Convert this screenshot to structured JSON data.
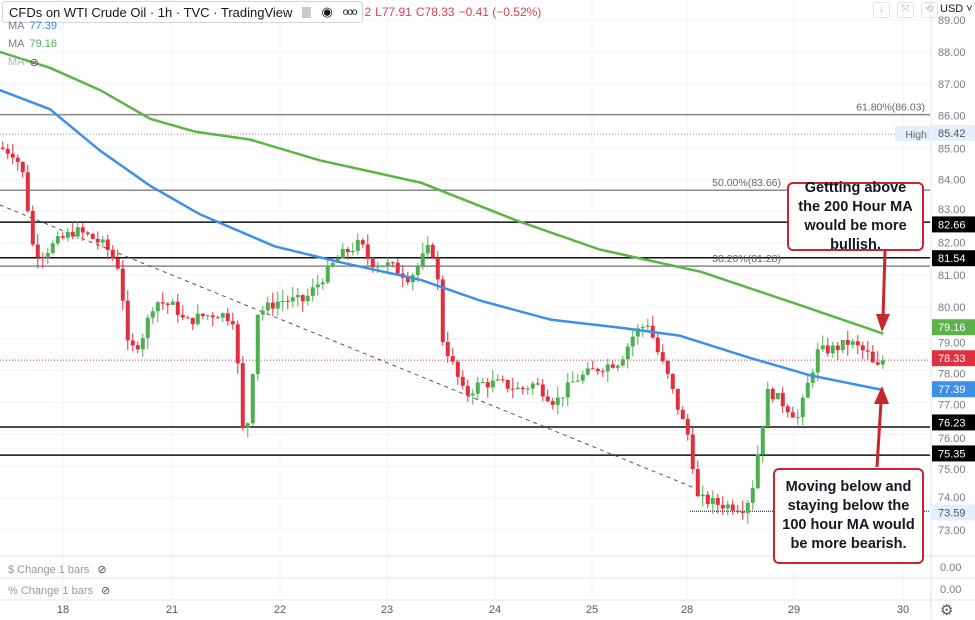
{
  "header": {
    "title": "CFDs on WTI Crude Oil · 1h · TVC · TradingView",
    "ohlc": [
      "2",
      "L77.91",
      "C78.33",
      "−0.41 (−0.52%)"
    ],
    "indicators": [
      {
        "label": "MA",
        "value": "77.39",
        "color": "#2f8cf0"
      },
      {
        "label": "MA",
        "value": "79.16",
        "color": "#4caf50"
      },
      {
        "label": "MA",
        "value": ""
      }
    ]
  },
  "toolbar": {
    "currency": "USD"
  },
  "panes": [
    {
      "label": "$ Change 1 bars",
      "value": "0.00"
    },
    {
      "label": "% Change 1 bars",
      "value": "0.00"
    }
  ],
  "callouts": {
    "top": "Gettting above the 200 Hour MA would be more bullish.",
    "bottom": "Moving below and staying below the 100 hour MA would be more bearish."
  },
  "colors": {
    "up": "#4caf50",
    "down": "#e0303f",
    "ma100": "#3d8fe8",
    "ma200": "#5cb347",
    "callout": "#c9252c"
  },
  "chart_data": {
    "type": "candlestick",
    "title": "CFDs on WTI Crude Oil · 1h · TVC",
    "x_ticks": [
      "18",
      "21",
      "22",
      "23",
      "24",
      "25",
      "28",
      "29",
      "30"
    ],
    "y_ticks": [
      "89.00",
      "88.00",
      "87.00",
      "86.00",
      "85.00",
      "84.00",
      "83.00",
      "82.00",
      "81.00",
      "80.00",
      "79.00",
      "78.00",
      "77.00",
      "76.00",
      "75.00",
      "74.00",
      "73.00"
    ],
    "ylim": [
      72.4,
      89.1
    ],
    "grid": true,
    "close_path": [
      [
        "18",
        -0.58,
        85.0
      ],
      [
        "18",
        -0.44,
        84.8
      ],
      [
        "18",
        -0.35,
        84.0
      ],
      [
        "18",
        -0.29,
        82.0
      ],
      [
        "18",
        -0.21,
        81.6
      ],
      [
        "18",
        -0.07,
        82.0
      ],
      [
        "18",
        0.11,
        82.4
      ],
      [
        "18",
        0.25,
        82.2
      ],
      [
        "18",
        0.39,
        81.9
      ],
      [
        "18",
        0.52,
        81.2
      ],
      [
        "18",
        0.6,
        78.6
      ],
      [
        "18",
        0.71,
        78.9
      ],
      [
        "18",
        0.84,
        80.2
      ],
      [
        "21",
        0.03,
        80.0
      ],
      [
        "21",
        0.12,
        79.5
      ],
      [
        "21",
        0.26,
        79.7
      ],
      [
        "21",
        0.44,
        79.8
      ],
      [
        "21",
        0.58,
        79.6
      ],
      [
        "21",
        0.65,
        76.1
      ],
      [
        "21",
        0.72,
        76.5
      ],
      [
        "21",
        0.78,
        79.8
      ],
      [
        "22",
        0.0,
        80.2
      ],
      [
        "22",
        0.23,
        80.2
      ],
      [
        "22",
        0.37,
        80.8
      ],
      [
        "22",
        0.56,
        81.6
      ],
      [
        "22",
        0.75,
        82.0
      ],
      [
        "22",
        0.84,
        81.4
      ],
      [
        "23",
        0.03,
        81.3
      ],
      [
        "23",
        0.21,
        80.9
      ],
      [
        "23",
        0.38,
        81.8
      ],
      [
        "23",
        0.46,
        81.6
      ],
      [
        "23",
        0.49,
        79.2
      ],
      [
        "23",
        0.63,
        78.0
      ],
      [
        "23",
        0.72,
        77.2
      ],
      [
        "23",
        0.86,
        77.6
      ],
      [
        "24",
        0.05,
        77.6
      ],
      [
        "24",
        0.26,
        77.4
      ],
      [
        "24",
        0.41,
        77.6
      ],
      [
        "24",
        0.62,
        77.0
      ],
      [
        "24",
        0.82,
        77.7
      ],
      [
        "25",
        0.08,
        78.1
      ],
      [
        "25",
        0.29,
        78.3
      ],
      [
        "25",
        0.45,
        79.2
      ],
      [
        "25",
        0.59,
        79.5
      ],
      [
        "25",
        0.69,
        78.6
      ],
      [
        "25",
        0.8,
        77.8
      ],
      [
        "25",
        0.93,
        76.6
      ],
      [
        "28",
        0.03,
        75.8
      ],
      [
        "28",
        0.09,
        74.0
      ],
      [
        "28",
        0.31,
        73.8
      ],
      [
        "28",
        0.54,
        73.7
      ],
      [
        "28",
        0.61,
        74.3
      ],
      [
        "28",
        0.68,
        75.8
      ],
      [
        "28",
        0.76,
        77.4
      ],
      [
        "28",
        0.92,
        76.9
      ],
      [
        "29",
        0.04,
        76.5
      ],
      [
        "29",
        0.13,
        77.6
      ],
      [
        "29",
        0.22,
        78.6
      ],
      [
        "29",
        0.38,
        78.7
      ],
      [
        "29",
        0.51,
        78.9
      ],
      [
        "29",
        0.68,
        78.5
      ],
      [
        "29",
        0.75,
        78.0
      ],
      [
        "29",
        0.82,
        78.33
      ]
    ],
    "series": [
      {
        "name": "MA",
        "value_label": "79.16",
        "color": "#5cb347",
        "points": [
          [
            "18",
            -0.58,
            88.0
          ],
          [
            "18",
            -0.12,
            87.5
          ],
          [
            "18",
            0.34,
            86.8
          ],
          [
            "18",
            0.8,
            85.9
          ],
          [
            "21",
            0.21,
            85.5
          ],
          [
            "21",
            0.72,
            85.25
          ],
          [
            "22",
            0.37,
            84.6
          ],
          [
            "23",
            0.31,
            83.9
          ],
          [
            "24",
            0.23,
            82.7
          ],
          [
            "25",
            0.08,
            81.8
          ],
          [
            "28",
            0.13,
            81.1
          ],
          [
            "29",
            0.06,
            80.05
          ],
          [
            "29",
            0.82,
            79.16
          ]
        ]
      },
      {
        "name": "MA",
        "value_label": "77.39",
        "color": "#3d8fe8",
        "points": [
          [
            "18",
            -0.58,
            86.8
          ],
          [
            "18",
            -0.12,
            86.2
          ],
          [
            "18",
            0.34,
            84.9
          ],
          [
            "18",
            0.8,
            83.8
          ],
          [
            "21",
            0.26,
            82.9
          ],
          [
            "21",
            0.95,
            81.9
          ],
          [
            "22",
            0.56,
            81.4
          ],
          [
            "23",
            0.31,
            80.85
          ],
          [
            "23",
            0.86,
            80.2
          ],
          [
            "24",
            0.57,
            79.6
          ],
          [
            "25",
            0.29,
            79.35
          ],
          [
            "25",
            0.92,
            79.1
          ],
          [
            "28",
            0.59,
            78.4
          ],
          [
            "29",
            0.15,
            77.85
          ],
          [
            "29",
            0.82,
            77.39
          ]
        ]
      }
    ],
    "trendline": [
      [
        "18",
        -0.58,
        83.2
      ],
      [
        "28",
        0.12,
        74.25
      ]
    ],
    "levels": [
      {
        "price": 86.03,
        "label": "61.80%(86.03)",
        "style": "fib"
      },
      {
        "price": 85.42,
        "label": "High",
        "axis_label": "85.42",
        "style": "dotted"
      },
      {
        "price": 83.66,
        "label": "50.00%(83.66)",
        "style": "fib"
      },
      {
        "price": 82.66,
        "axis_label": "82.66",
        "style": "solid"
      },
      {
        "price": 81.54,
        "axis_label": "81.54",
        "style": "solid"
      },
      {
        "price": 81.28,
        "label": "38.20%(81.28)",
        "style": "fib"
      },
      {
        "price": 78.33,
        "axis_label": "78.33",
        "style": "last"
      },
      {
        "price": 76.23,
        "axis_label": "76.23",
        "style": "solid"
      },
      {
        "price": 75.35,
        "axis_label": "75.35",
        "style": "solid"
      },
      {
        "price": 73.59,
        "axis_label": "73.59",
        "style": "dotted-low"
      }
    ]
  }
}
